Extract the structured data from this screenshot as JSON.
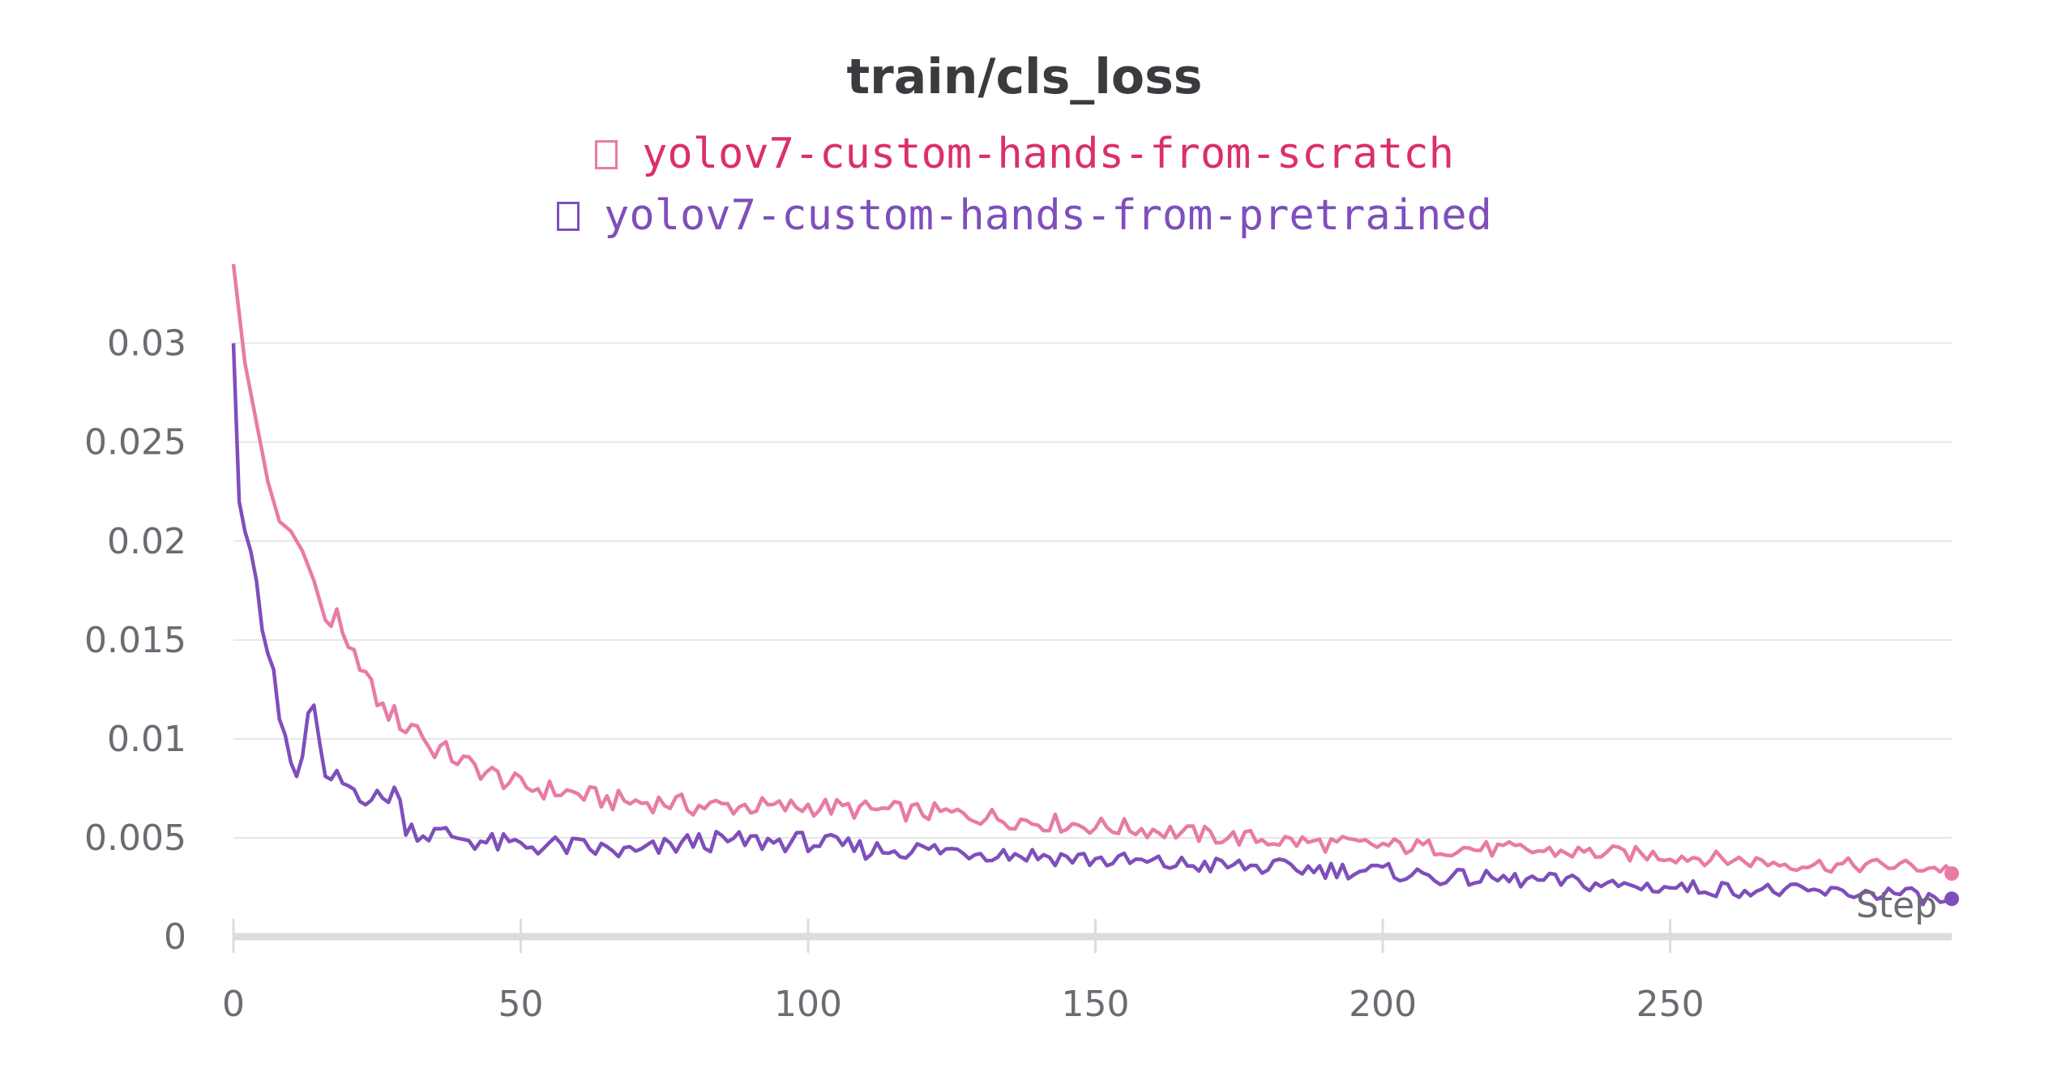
{
  "chart_data": {
    "type": "line",
    "title": "train/cls_loss",
    "xlabel": "Step",
    "ylabel": "",
    "xlim": [
      0,
      299
    ],
    "ylim": [
      0,
      0.034
    ],
    "grid": true,
    "legend_position": "top-center",
    "x_ticks": [
      0,
      50,
      100,
      150,
      200,
      250
    ],
    "x_tick_labels": [
      "0",
      "50",
      "100",
      "150",
      "200",
      "250"
    ],
    "y_ticks": [
      0,
      0.005,
      0.01,
      0.015,
      0.02,
      0.025,
      0.03
    ],
    "y_tick_labels": [
      "0",
      "0.005",
      "0.01",
      "0.015",
      "0.02",
      "0.025",
      "0.03"
    ],
    "series": [
      {
        "name": "yolov7-custom-hands-from-scratch",
        "color": "#e87ba6",
        "label_color": "#dc2e6d",
        "anchors": [
          [
            0,
            0.034
          ],
          [
            2,
            0.029
          ],
          [
            4,
            0.026
          ],
          [
            6,
            0.023
          ],
          [
            8,
            0.021
          ],
          [
            10,
            0.0205
          ],
          [
            12,
            0.0195
          ],
          [
            14,
            0.018
          ],
          [
            16,
            0.016
          ],
          [
            18,
            0.016
          ],
          [
            20,
            0.0142
          ],
          [
            22,
            0.014
          ],
          [
            24,
            0.0125
          ],
          [
            26,
            0.0115
          ],
          [
            28,
            0.0112
          ],
          [
            30,
            0.0105
          ],
          [
            32,
            0.0108
          ],
          [
            34,
            0.0095
          ],
          [
            36,
            0.0095
          ],
          [
            40,
            0.0088
          ],
          [
            45,
            0.0082
          ],
          [
            50,
            0.0076
          ],
          [
            55,
            0.0074
          ],
          [
            60,
            0.0072
          ],
          [
            65,
            0.0069
          ],
          [
            70,
            0.0068
          ],
          [
            75,
            0.0068
          ],
          [
            80,
            0.0066
          ],
          [
            85,
            0.0066
          ],
          [
            90,
            0.0066
          ],
          [
            95,
            0.0065
          ],
          [
            100,
            0.0066
          ],
          [
            110,
            0.0064
          ],
          [
            120,
            0.0063
          ],
          [
            130,
            0.0061
          ],
          [
            140,
            0.0058
          ],
          [
            150,
            0.0056
          ],
          [
            160,
            0.0054
          ],
          [
            170,
            0.0051
          ],
          [
            180,
            0.0049
          ],
          [
            190,
            0.0047
          ],
          [
            200,
            0.0046
          ],
          [
            210,
            0.0045
          ],
          [
            220,
            0.0044
          ],
          [
            230,
            0.0043
          ],
          [
            240,
            0.0042
          ],
          [
            250,
            0.0041
          ],
          [
            260,
            0.0039
          ],
          [
            270,
            0.0037
          ],
          [
            280,
            0.0036
          ],
          [
            290,
            0.0036
          ],
          [
            299,
            0.0034
          ]
        ]
      },
      {
        "name": "yolov7-custom-hands-from-pretrained",
        "color": "#7e4fbb",
        "label_color": "#7e4fbb",
        "anchors": [
          [
            0,
            0.03
          ],
          [
            1,
            0.022
          ],
          [
            2,
            0.0205
          ],
          [
            3,
            0.0195
          ],
          [
            4,
            0.018
          ],
          [
            5,
            0.0155
          ],
          [
            6,
            0.0143
          ],
          [
            7,
            0.0135
          ],
          [
            8,
            0.011
          ],
          [
            9,
            0.0102
          ],
          [
            10,
            0.0088
          ],
          [
            11,
            0.0081
          ],
          [
            12,
            0.0091
          ],
          [
            13,
            0.0113
          ],
          [
            14,
            0.0117
          ],
          [
            15,
            0.0098
          ],
          [
            16,
            0.0081
          ],
          [
            18,
            0.0079
          ],
          [
            20,
            0.0076
          ],
          [
            22,
            0.0073
          ],
          [
            24,
            0.007
          ],
          [
            26,
            0.0069
          ],
          [
            28,
            0.0075
          ],
          [
            30,
            0.0057
          ],
          [
            33,
            0.0052
          ],
          [
            36,
            0.0052
          ],
          [
            40,
            0.005
          ],
          [
            45,
            0.0047
          ],
          [
            50,
            0.0046
          ],
          [
            55,
            0.0046
          ],
          [
            60,
            0.0045
          ],
          [
            70,
            0.0042
          ],
          [
            80,
            0.0048
          ],
          [
            90,
            0.0048
          ],
          [
            100,
            0.0048
          ],
          [
            110,
            0.0044
          ],
          [
            120,
            0.0044
          ],
          [
            130,
            0.0043
          ],
          [
            140,
            0.0041
          ],
          [
            150,
            0.0039
          ],
          [
            160,
            0.0037
          ],
          [
            170,
            0.0036
          ],
          [
            180,
            0.0035
          ],
          [
            190,
            0.0034
          ],
          [
            200,
            0.0033
          ],
          [
            210,
            0.003
          ],
          [
            220,
            0.0029
          ],
          [
            230,
            0.0028
          ],
          [
            240,
            0.0026
          ],
          [
            250,
            0.0025
          ],
          [
            260,
            0.0024
          ],
          [
            270,
            0.0023
          ],
          [
            280,
            0.0022
          ],
          [
            290,
            0.0022
          ],
          [
            299,
            0.0017
          ]
        ]
      }
    ]
  }
}
